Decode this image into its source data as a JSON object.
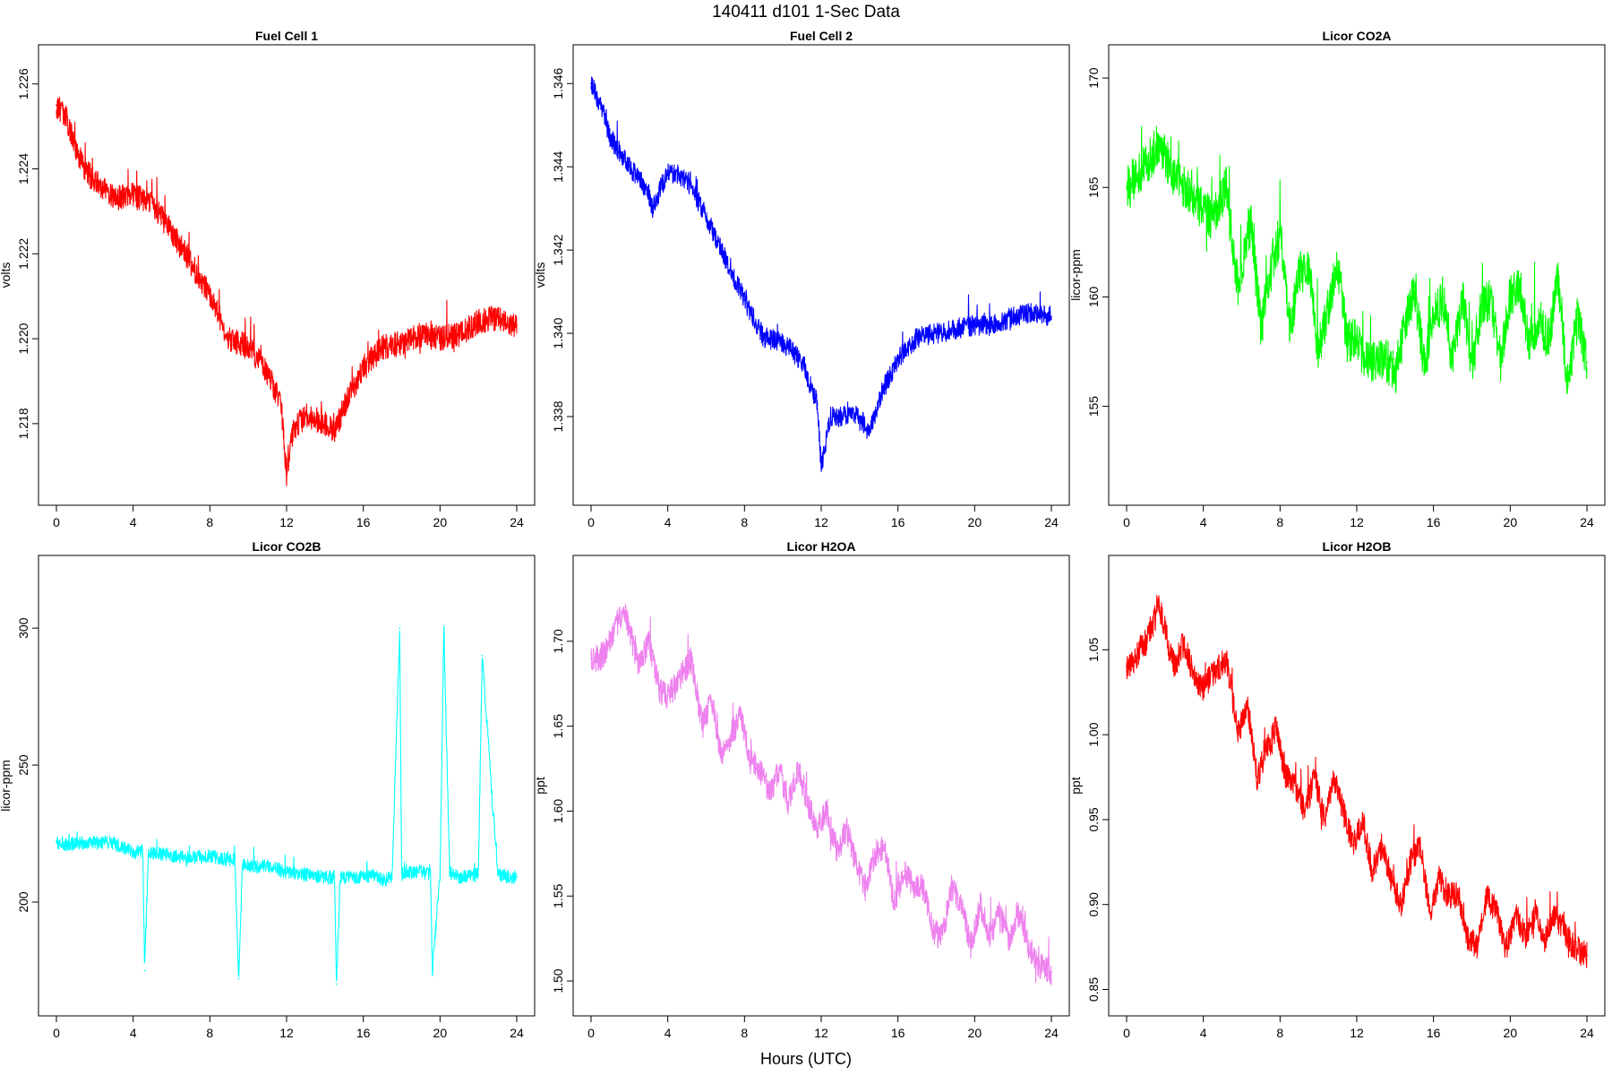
{
  "figure": {
    "title": "140411   d101   1-Sec Data",
    "xlabel": "Hours (UTC)"
  },
  "chart_data": [
    {
      "type": "line",
      "title": "Fuel Cell 1",
      "ylabel": "volts",
      "color": "#ff0000",
      "xlim": [
        0,
        24
      ],
      "ylim": [
        1.2165,
        1.2265
      ],
      "xticks": [
        0,
        4,
        8,
        12,
        16,
        20,
        24
      ],
      "yticks": [
        1.218,
        1.22,
        1.222,
        1.224,
        1.226
      ],
      "ytick_labels": [
        "1.218",
        "1.220",
        "1.222",
        "1.224",
        "1.226"
      ],
      "grid": false,
      "noise": 0.0003,
      "x": [
        0,
        0.5,
        1,
        1.5,
        2,
        3,
        4,
        5,
        6,
        7,
        8,
        9,
        10,
        11,
        11.7,
        12,
        12.3,
        13,
        14,
        14.5,
        15,
        16,
        17,
        18,
        19,
        20,
        21,
        22,
        23,
        24
      ],
      "y": [
        1.2255,
        1.2252,
        1.2245,
        1.224,
        1.2237,
        1.2233,
        1.2234,
        1.2232,
        1.2225,
        1.2218,
        1.221,
        1.22,
        1.2198,
        1.2192,
        1.2185,
        1.2168,
        1.2178,
        1.2182,
        1.218,
        1.2178,
        1.2184,
        1.2193,
        1.2198,
        1.2199,
        1.2201,
        1.22,
        1.2201,
        1.2204,
        1.2205,
        1.2203
      ]
    },
    {
      "type": "line",
      "title": "Fuel Cell 2",
      "ylabel": "volts",
      "color": "#0000ff",
      "xlim": [
        0,
        24
      ],
      "ylim": [
        1.3363,
        1.3465
      ],
      "xticks": [
        0,
        4,
        8,
        12,
        16,
        20,
        24
      ],
      "yticks": [
        1.338,
        1.34,
        1.342,
        1.344,
        1.346
      ],
      "ytick_labels": [
        "1.338",
        "1.340",
        "1.342",
        "1.344",
        "1.346"
      ],
      "grid": false,
      "noise": 0.00025,
      "x": [
        0,
        0.5,
        1,
        2,
        3,
        3.2,
        4,
        5,
        6,
        7,
        8,
        9,
        10,
        11,
        11.8,
        12,
        12.5,
        13,
        14,
        14.5,
        15,
        16,
        17,
        18,
        19,
        20,
        21,
        22,
        23,
        24
      ],
      "y": [
        1.346,
        1.3455,
        1.3447,
        1.344,
        1.3434,
        1.343,
        1.3439,
        1.3437,
        1.3428,
        1.3418,
        1.3408,
        1.3399,
        1.3398,
        1.3393,
        1.3383,
        1.3368,
        1.338,
        1.338,
        1.338,
        1.3376,
        1.3384,
        1.3394,
        1.3399,
        1.34,
        1.3401,
        1.3402,
        1.3402,
        1.3404,
        1.3405,
        1.3404
      ]
    },
    {
      "type": "line",
      "title": "Licor CO2A",
      "ylabel": "licor-ppm",
      "color": "#00ff00",
      "xlim": [
        0,
        24
      ],
      "ylim": [
        151.3,
        170.7
      ],
      "xticks": [
        0,
        4,
        8,
        12,
        16,
        20,
        24
      ],
      "yticks": [
        155,
        160,
        165,
        170
      ],
      "ytick_labels": [
        "155",
        "160",
        "165",
        "170"
      ],
      "grid": false,
      "noise": 1.0,
      "x": [
        0,
        1,
        1.7,
        2.5,
        3.5,
        4.5,
        5.2,
        5.8,
        6.5,
        7,
        7.5,
        8,
        8.5,
        9,
        9.5,
        10,
        10.5,
        11,
        11.5,
        12,
        12.5,
        13,
        13.5,
        14,
        14.5,
        15,
        15.5,
        16,
        16.5,
        17,
        17.5,
        18,
        18.5,
        19,
        19.5,
        20,
        20.5,
        21,
        21.5,
        22,
        22.5,
        23,
        23.5,
        24
      ],
      "y": [
        165,
        166,
        167,
        165.5,
        164.5,
        163.5,
        165,
        160.5,
        163.5,
        158.5,
        161,
        163,
        158.5,
        161,
        161.5,
        157.5,
        159.5,
        161.5,
        158,
        158,
        157,
        157,
        157.2,
        156.5,
        158.5,
        160.5,
        157,
        159,
        160,
        157,
        160,
        157,
        159.5,
        160,
        157,
        160,
        160.5,
        158,
        159,
        158,
        161,
        156,
        159,
        157
      ]
    },
    {
      "type": "line",
      "title": "Licor CO2B",
      "ylabel": "licor-ppm",
      "color": "#00ffff",
      "xlim": [
        0,
        24
      ],
      "ylim": [
        165,
        320
      ],
      "xticks": [
        0,
        4,
        8,
        12,
        16,
        20,
        24
      ],
      "yticks": [
        200,
        250,
        300
      ],
      "ytick_labels": [
        "200",
        "250",
        "300"
      ],
      "grid": false,
      "noise": 2.5,
      "x": [
        0,
        0.5,
        1,
        2,
        3,
        4,
        4.5,
        4.6,
        4.8,
        5,
        6,
        7,
        8,
        9,
        9.3,
        9.5,
        9.7,
        10,
        11,
        12,
        13,
        14,
        14.5,
        14.6,
        14.8,
        15,
        16,
        16.5,
        17,
        17.5,
        17.9,
        18,
        18.3,
        19,
        19.5,
        19.6,
        20,
        20.2,
        20.5,
        21,
        22,
        22.2,
        23,
        24
      ],
      "y": [
        222,
        221,
        221.5,
        222,
        221.5,
        218,
        219,
        175,
        219,
        218,
        217,
        216,
        217,
        215,
        216,
        172,
        214,
        213,
        213,
        211,
        210,
        209,
        209,
        170,
        210,
        209,
        209,
        210,
        208,
        209,
        300,
        210,
        211,
        211,
        210,
        175,
        210,
        300,
        211,
        209,
        210,
        290,
        210,
        209
      ]
    },
    {
      "type": "line",
      "title": "Licor H2OA",
      "ylabel": "ppt",
      "color": "#ee82ee",
      "xlim": [
        0,
        24
      ],
      "ylim": [
        1.49,
        1.74
      ],
      "xticks": [
        0,
        4,
        8,
        12,
        16,
        20,
        24
      ],
      "yticks": [
        1.5,
        1.55,
        1.6,
        1.65,
        1.7
      ],
      "ytick_labels": [
        "1.50",
        "1.55",
        "1.60",
        "1.65",
        "1.70"
      ],
      "grid": false,
      "noise": 0.008,
      "x": [
        0,
        0.5,
        1,
        1.7,
        2.5,
        3,
        3.6,
        4,
        4.5,
        5.2,
        5.8,
        6.3,
        6.8,
        7.3,
        7.8,
        8.3,
        8.8,
        9.3,
        9.8,
        10.3,
        10.8,
        11.3,
        11.8,
        12.3,
        12.8,
        13.3,
        13.8,
        14.3,
        14.8,
        15.3,
        15.8,
        16.3,
        16.8,
        17.3,
        17.8,
        18.3,
        18.8,
        19.3,
        19.8,
        20.3,
        20.8,
        21.3,
        21.8,
        22.3,
        22.8,
        23.3,
        24
      ],
      "y": [
        1.69,
        1.69,
        1.7,
        1.72,
        1.685,
        1.7,
        1.67,
        1.668,
        1.675,
        1.69,
        1.65,
        1.665,
        1.63,
        1.645,
        1.655,
        1.63,
        1.625,
        1.61,
        1.625,
        1.605,
        1.625,
        1.605,
        1.59,
        1.6,
        1.575,
        1.59,
        1.57,
        1.555,
        1.575,
        1.58,
        1.545,
        1.565,
        1.555,
        1.555,
        1.53,
        1.525,
        1.555,
        1.545,
        1.52,
        1.545,
        1.525,
        1.54,
        1.525,
        1.54,
        1.52,
        1.51,
        1.505
      ]
    },
    {
      "type": "line",
      "title": "Licor H2OB",
      "ylabel": "ppt",
      "color": "#ff0000",
      "xlim": [
        0,
        24
      ],
      "ylim": [
        0.845,
        1.095
      ],
      "xticks": [
        0,
        4,
        8,
        12,
        16,
        20,
        24
      ],
      "yticks": [
        0.85,
        0.9,
        0.95,
        1.0,
        1.05
      ],
      "ytick_labels": [
        "0.85",
        "0.90",
        "0.95",
        "1.00",
        "1.05"
      ],
      "grid": false,
      "noise": 0.008,
      "x": [
        0,
        0.5,
        1,
        1.7,
        2.5,
        3,
        3.6,
        4,
        4.5,
        5.2,
        5.8,
        6.3,
        6.8,
        7.3,
        7.8,
        8.3,
        8.8,
        9.3,
        9.8,
        10.3,
        10.8,
        11.3,
        11.8,
        12.3,
        12.8,
        13.3,
        13.8,
        14.3,
        14.8,
        15.3,
        15.8,
        16.3,
        16.8,
        17.3,
        17.8,
        18.3,
        18.8,
        19.3,
        19.8,
        20.3,
        20.8,
        21.3,
        21.8,
        22.3,
        22.8,
        23.3,
        24
      ],
      "y": [
        1.04,
        1.045,
        1.055,
        1.075,
        1.04,
        1.055,
        1.03,
        1.028,
        1.035,
        1.045,
        1.0,
        1.018,
        0.975,
        0.99,
        1.005,
        0.975,
        0.97,
        0.955,
        0.975,
        0.95,
        0.975,
        0.955,
        0.935,
        0.95,
        0.92,
        0.935,
        0.915,
        0.9,
        0.925,
        0.935,
        0.895,
        0.915,
        0.905,
        0.905,
        0.88,
        0.875,
        0.905,
        0.895,
        0.875,
        0.895,
        0.88,
        0.895,
        0.88,
        0.895,
        0.885,
        0.875,
        0.87
      ]
    }
  ]
}
